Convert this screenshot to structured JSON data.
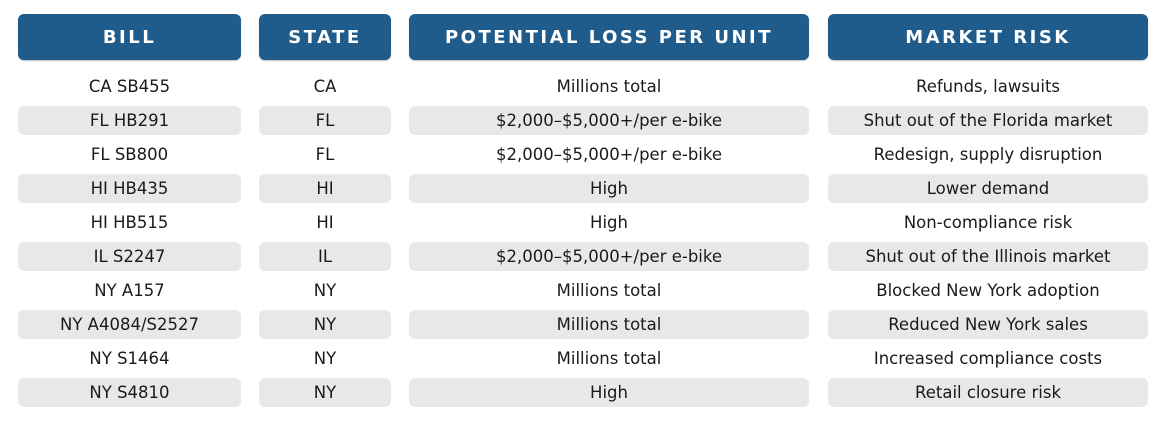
{
  "chart_data": {
    "type": "table",
    "columns": [
      "BILL",
      "STATE",
      "POTENTIAL LOSS PER UNIT",
      "MARKET RISK"
    ],
    "rows": [
      [
        "CA SB455",
        "CA",
        "Millions total",
        "Refunds, lawsuits"
      ],
      [
        "FL HB291",
        "FL",
        "$2,000–$5,000+/per e-bike",
        "Shut out of the Florida market"
      ],
      [
        "FL SB800",
        "FL",
        "$2,000–$5,000+/per e-bike",
        "Redesign, supply disruption"
      ],
      [
        "HI HB435",
        "HI",
        "High",
        "Lower demand"
      ],
      [
        "HI HB515",
        "HI",
        "High",
        "Non-compliance risk"
      ],
      [
        "IL S2247",
        "IL",
        "$2,000–$5,000+/per e-bike",
        "Shut out of the Illinois market"
      ],
      [
        "NY A157",
        "NY",
        "Millions total",
        "Blocked New York adoption"
      ],
      [
        "NY A4084/S2527",
        "NY",
        "Millions total",
        "Reduced New York sales"
      ],
      [
        "NY S1464",
        "NY",
        "Millions total",
        "Increased compliance costs"
      ],
      [
        "NY S4810",
        "NY",
        "High",
        "Retail closure risk"
      ]
    ]
  },
  "colors": {
    "header_bg": "#1f5c8b",
    "header_text": "#ffffff",
    "stripe_bg": "#e8e8e8"
  }
}
